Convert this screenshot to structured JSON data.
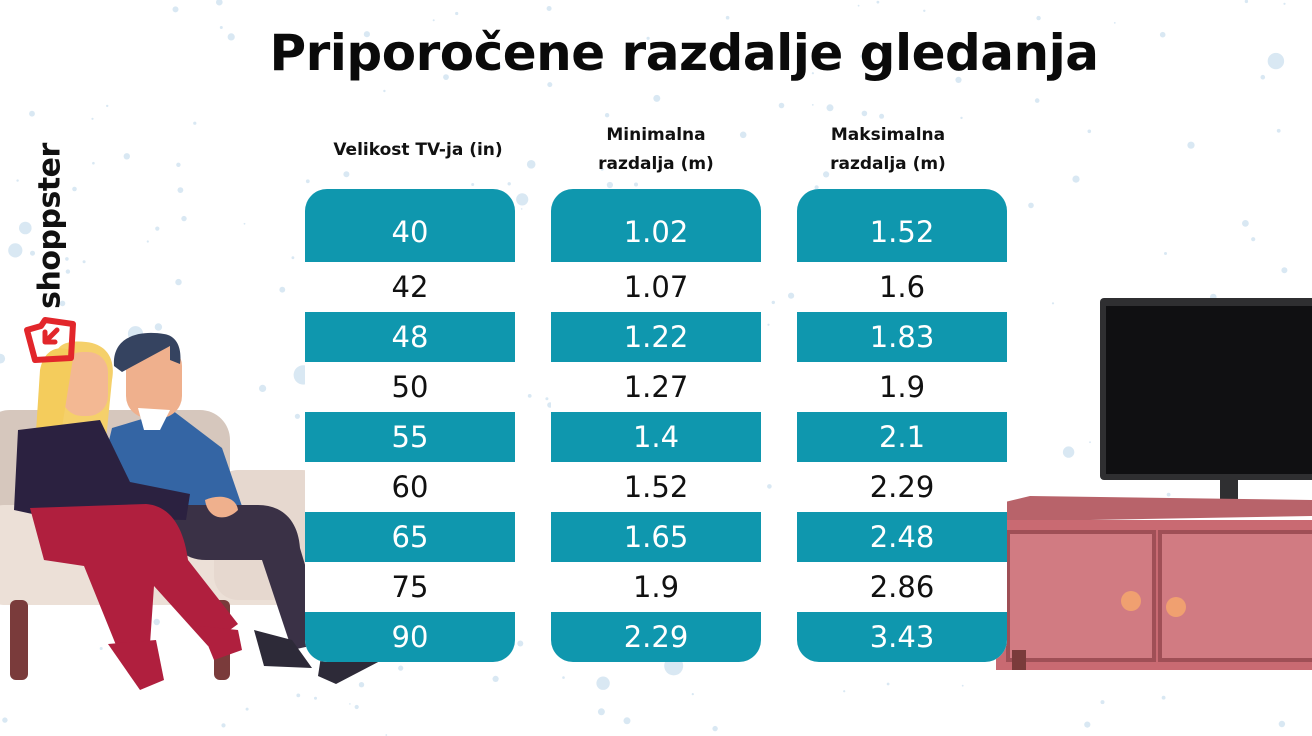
{
  "brand": {
    "logo_text": "shoppster",
    "accent_red": "#e2262b"
  },
  "title": "Priporočene razdalje gledanja",
  "colors": {
    "teal": "#0f97ae",
    "dots": "#d9e8f3"
  },
  "chart_data": {
    "type": "table",
    "columns": [
      "Velikost TV-ja (in)",
      "Minimalna\nrazdalja (m)",
      "Maksimalna\nrazdalja (m)"
    ],
    "rows": [
      [
        "40",
        "1.02",
        "1.52"
      ],
      [
        "42",
        "1.07",
        "1.6"
      ],
      [
        "48",
        "1.22",
        "1.83"
      ],
      [
        "50",
        "1.27",
        "1.9"
      ],
      [
        "55",
        "1.4",
        "2.1"
      ],
      [
        "60",
        "1.52",
        "2.29"
      ],
      [
        "65",
        "1.65",
        "2.48"
      ],
      [
        "75",
        "1.9",
        "2.86"
      ],
      [
        "90",
        "2.29",
        "3.43"
      ]
    ]
  }
}
